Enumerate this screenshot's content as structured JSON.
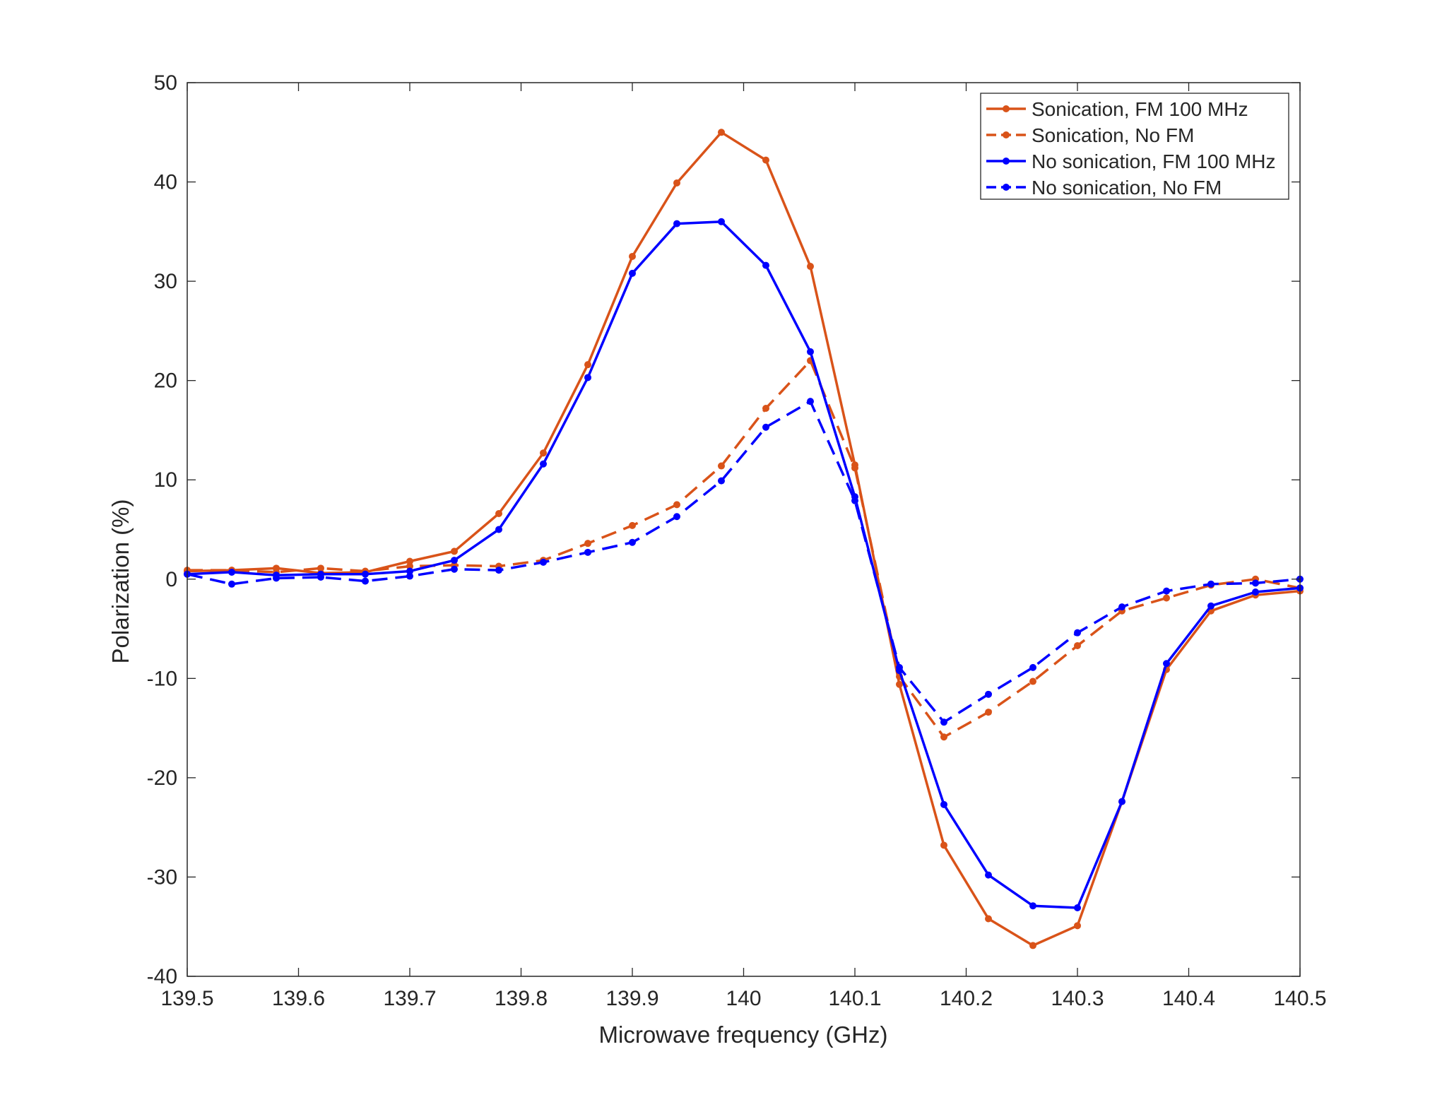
{
  "chart_data": {
    "type": "line",
    "xlabel": "Microwave frequency (GHz)",
    "ylabel": "Polarization (%)",
    "xlim": [
      139.5,
      140.5
    ],
    "ylim": [
      -40,
      50
    ],
    "x_ticks": [
      139.5,
      139.6,
      139.7,
      139.8,
      139.9,
      140,
      140.1,
      140.2,
      140.3,
      140.4,
      140.5
    ],
    "x_tick_labels": [
      "139.5",
      "139.6",
      "139.7",
      "139.8",
      "139.9",
      "140",
      "140.1",
      "140.2",
      "140.3",
      "140.4",
      "140.5"
    ],
    "y_ticks": [
      -40,
      -30,
      -20,
      -10,
      0,
      10,
      20,
      30,
      40,
      50
    ],
    "y_tick_labels": [
      "-40",
      "-30",
      "-20",
      "-10",
      "0",
      "10",
      "20",
      "30",
      "40",
      "50"
    ],
    "grid": true,
    "legend_position": "top-right",
    "x": [
      139.5,
      139.54,
      139.58,
      139.62,
      139.66,
      139.7,
      139.74,
      139.78,
      139.82,
      139.86,
      139.9,
      139.94,
      139.98,
      140.02,
      140.06,
      140.1,
      140.14,
      140.18,
      140.22,
      140.26,
      140.3,
      140.34,
      140.38,
      140.42,
      140.46,
      140.5
    ],
    "series": [
      {
        "name": "Sonication, FM 100 MHz",
        "color": "#D95319",
        "dash": "solid",
        "values": [
          0.8,
          0.9,
          1.1,
          0.6,
          0.7,
          1.8,
          2.8,
          6.6,
          12.7,
          21.6,
          32.5,
          39.9,
          45.0,
          42.2,
          31.5,
          11.5,
          -10.6,
          -26.8,
          -34.2,
          -36.9,
          -34.9,
          -22.4,
          -9.1,
          -3.2,
          -1.6,
          -1.2
        ]
      },
      {
        "name": "Sonication, No FM",
        "color": "#D95319",
        "dash": "dashed",
        "values": [
          0.9,
          0.9,
          0.7,
          1.1,
          0.8,
          1.3,
          1.4,
          1.3,
          1.9,
          3.6,
          5.4,
          7.5,
          11.4,
          17.2,
          22.0,
          11.2,
          -9.8,
          -15.9,
          -13.4,
          -10.3,
          -6.7,
          -3.2,
          -1.9,
          -0.6,
          0.0,
          -0.9
        ]
      },
      {
        "name": "No sonication, FM 100 MHz",
        "color": "#0000FF",
        "dash": "solid",
        "values": [
          0.5,
          0.7,
          0.4,
          0.5,
          0.5,
          0.8,
          1.9,
          5.0,
          11.6,
          20.3,
          30.8,
          35.8,
          36.0,
          31.6,
          22.9,
          8.3,
          -9.2,
          -22.7,
          -29.8,
          -32.9,
          -33.1,
          -22.4,
          -8.5,
          -2.7,
          -1.3,
          -0.9
        ]
      },
      {
        "name": "No sonication, No FM",
        "color": "#0000FF",
        "dash": "dashed",
        "values": [
          0.5,
          -0.5,
          0.1,
          0.2,
          -0.2,
          0.3,
          1.0,
          0.9,
          1.7,
          2.7,
          3.7,
          6.3,
          9.9,
          15.3,
          17.9,
          7.9,
          -8.9,
          -14.4,
          -11.6,
          -8.9,
          -5.4,
          -2.8,
          -1.2,
          -0.5,
          -0.4,
          0.0
        ]
      }
    ]
  }
}
